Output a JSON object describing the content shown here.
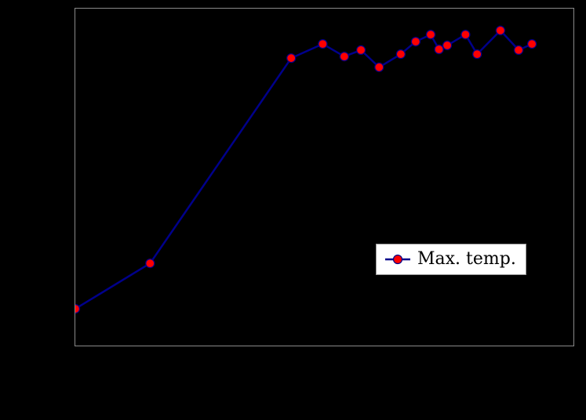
{
  "chart_data": {
    "type": "line",
    "title": "",
    "xlabel": "",
    "ylabel": "",
    "xlim": [
      0,
      30
    ],
    "ylim": [
      0,
      100
    ],
    "grid": false,
    "tick_labels_visible": false,
    "series": [
      {
        "name": "Max. temp.",
        "x": [
          0,
          4.5,
          13.0,
          14.9,
          16.2,
          17.2,
          18.3,
          19.6,
          20.5,
          21.4,
          21.9,
          22.4,
          23.5,
          24.2,
          25.6,
          26.7,
          27.5
        ],
        "y": [
          10.9,
          24.4,
          85.3,
          89.5,
          85.8,
          87.7,
          82.6,
          86.5,
          90.2,
          92.3,
          87.9,
          89.1,
          92.3,
          86.5,
          93.5,
          87.7,
          89.5
        ]
      }
    ],
    "legend": {
      "label": "Max. temp.",
      "position": "center-right",
      "background": "#ffffff",
      "border": "#9a9a9a"
    },
    "colors": {
      "line": "#00008b",
      "marker_fill": "#ff0000",
      "marker_edge": "#00008b",
      "plot_border": "#8a8a8a",
      "figure_background": "#000000"
    }
  }
}
